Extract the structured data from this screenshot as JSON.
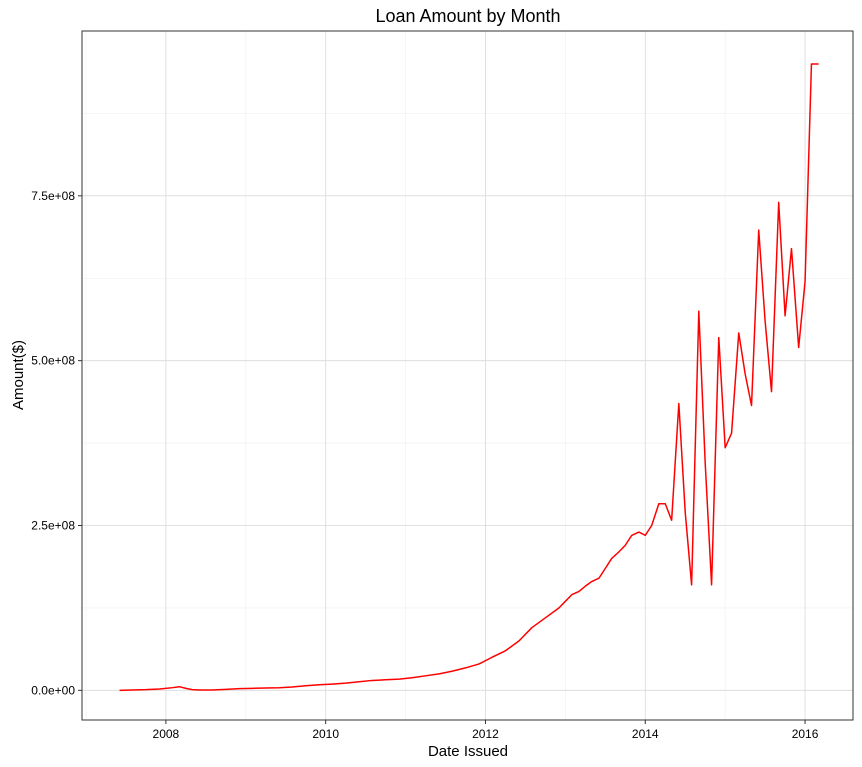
{
  "chart_data": {
    "type": "line",
    "title": "Loan Amount by Month",
    "xlabel": "Date Issued",
    "ylabel": "Amount($)",
    "x_ticks": [
      "2008",
      "2010",
      "2012",
      "2014",
      "2016"
    ],
    "y_ticks": [
      "0.0e+00",
      "2.5e+08",
      "5.0e+08",
      "7.5e+08"
    ],
    "xlim": [
      2006.95,
      2016.6
    ],
    "ylim": [
      -45000000,
      1000000000
    ],
    "grid": true,
    "line_color": "#ff0000",
    "series": [
      {
        "x": [
          2007.42,
          2007.58,
          2007.75,
          2007.92,
          2008.08,
          2008.17,
          2008.25,
          2008.33,
          2008.42,
          2008.58,
          2008.75,
          2008.92,
          2009.08,
          2009.25,
          2009.42,
          2009.58,
          2009.75,
          2009.92,
          2010.08,
          2010.25,
          2010.42,
          2010.58,
          2010.75,
          2010.92,
          2011.08,
          2011.25,
          2011.42,
          2011.58,
          2011.75,
          2011.92,
          2012.08,
          2012.25,
          2012.42,
          2012.58,
          2012.75,
          2012.92,
          2013.0,
          2013.08,
          2013.17,
          2013.25,
          2013.33,
          2013.42,
          2013.5,
          2013.58,
          2013.67,
          2013.75,
          2013.83,
          2013.92,
          2014.0,
          2014.08,
          2014.17,
          2014.25,
          2014.33,
          2014.42,
          2014.5,
          2014.58,
          2014.67,
          2014.75,
          2014.83,
          2014.92,
          2015.0,
          2015.08,
          2015.17,
          2015.25,
          2015.33,
          2015.42,
          2015.5,
          2015.58,
          2015.67,
          2015.75,
          2015.83,
          2015.92,
          2016.0,
          2016.08,
          2016.17
        ],
        "y": [
          0,
          500000,
          1000000,
          2000000,
          4000000,
          5500000,
          3000000,
          1000000,
          500000,
          500000,
          1500000,
          2500000,
          3000000,
          3500000,
          4000000,
          5000000,
          7000000,
          8500000,
          9500000,
          11000000,
          13000000,
          15000000,
          16000000,
          17000000,
          19000000,
          22000000,
          25000000,
          29000000,
          34000000,
          40000000,
          50000000,
          60000000,
          75000000,
          95000000,
          110000000,
          125000000,
          135000000,
          145000000,
          150000000,
          158000000,
          165000000,
          170000000,
          185000000,
          200000000,
          210000000,
          220000000,
          235000000,
          240000000,
          235000000,
          250000000,
          283000000,
          283000000,
          258000000,
          435000000,
          270000000,
          160000000,
          575000000,
          345000000,
          160000000,
          535000000,
          368000000,
          390000000,
          542000000,
          480000000,
          432000000,
          698000000,
          560000000,
          453000000,
          740000000,
          568000000,
          670000000,
          520000000,
          620000000,
          950000000,
          950000000
        ]
      }
    ]
  }
}
